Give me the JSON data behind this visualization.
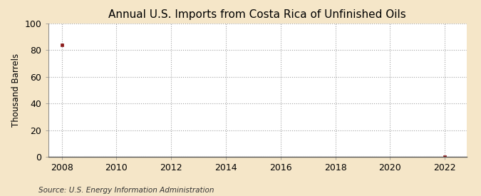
{
  "title": "Annual U.S. Imports from Costa Rica of Unfinished Oils",
  "ylabel": "Thousand Barrels",
  "source_text": "Source: U.S. Energy Information Administration",
  "x_data": [
    2008,
    2022
  ],
  "y_data": [
    84,
    0
  ],
  "xlim": [
    2007.5,
    2022.8
  ],
  "ylim": [
    0,
    100
  ],
  "x_ticks": [
    2008,
    2010,
    2012,
    2014,
    2016,
    2018,
    2020,
    2022
  ],
  "y_ticks": [
    0,
    20,
    40,
    60,
    80,
    100
  ],
  "marker_color": "#8B1A1A",
  "figure_bg_color": "#F5E6C8",
  "plot_bg_color": "#FFFFFF",
  "grid_color": "#999999",
  "title_fontsize": 11,
  "label_fontsize": 8.5,
  "tick_fontsize": 9,
  "source_fontsize": 7.5
}
